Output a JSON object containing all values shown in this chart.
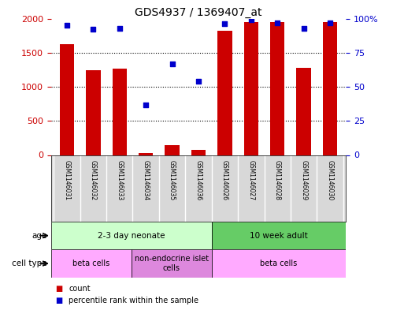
{
  "title": "GDS4937 / 1369407_at",
  "samples": [
    "GSM1146031",
    "GSM1146032",
    "GSM1146033",
    "GSM1146034",
    "GSM1146035",
    "GSM1146036",
    "GSM1146026",
    "GSM1146027",
    "GSM1146028",
    "GSM1146029",
    "GSM1146030"
  ],
  "counts": [
    1620,
    1240,
    1270,
    30,
    140,
    75,
    1820,
    1950,
    1950,
    1280,
    1950
  ],
  "percentiles": [
    95,
    92,
    93,
    37,
    67,
    54,
    96,
    99,
    97,
    93,
    97
  ],
  "ylim_left": [
    0,
    2000
  ],
  "ylim_right": [
    0,
    100
  ],
  "yticks_left": [
    0,
    500,
    1000,
    1500,
    2000
  ],
  "yticks_right": [
    0,
    25,
    50,
    75,
    100
  ],
  "bar_color": "#cc0000",
  "dot_color": "#0000cc",
  "age_groups": [
    {
      "label": "2-3 day neonate",
      "start": 0,
      "end": 6,
      "color": "#ccffcc"
    },
    {
      "label": "10 week adult",
      "start": 6,
      "end": 11,
      "color": "#66cc66"
    }
  ],
  "cell_type_groups": [
    {
      "label": "beta cells",
      "start": 0,
      "end": 3,
      "color": "#ffaaff"
    },
    {
      "label": "non-endocrine islet\ncells",
      "start": 3,
      "end": 6,
      "color": "#dd88dd"
    },
    {
      "label": "beta cells",
      "start": 6,
      "end": 11,
      "color": "#ffaaff"
    }
  ],
  "bg_color": "#ffffff",
  "grid_color": "#000000",
  "tick_label_color_left": "#cc0000",
  "tick_label_color_right": "#0000cc",
  "yticks_right_labels": [
    "0",
    "25",
    "50",
    "75",
    "100%"
  ]
}
